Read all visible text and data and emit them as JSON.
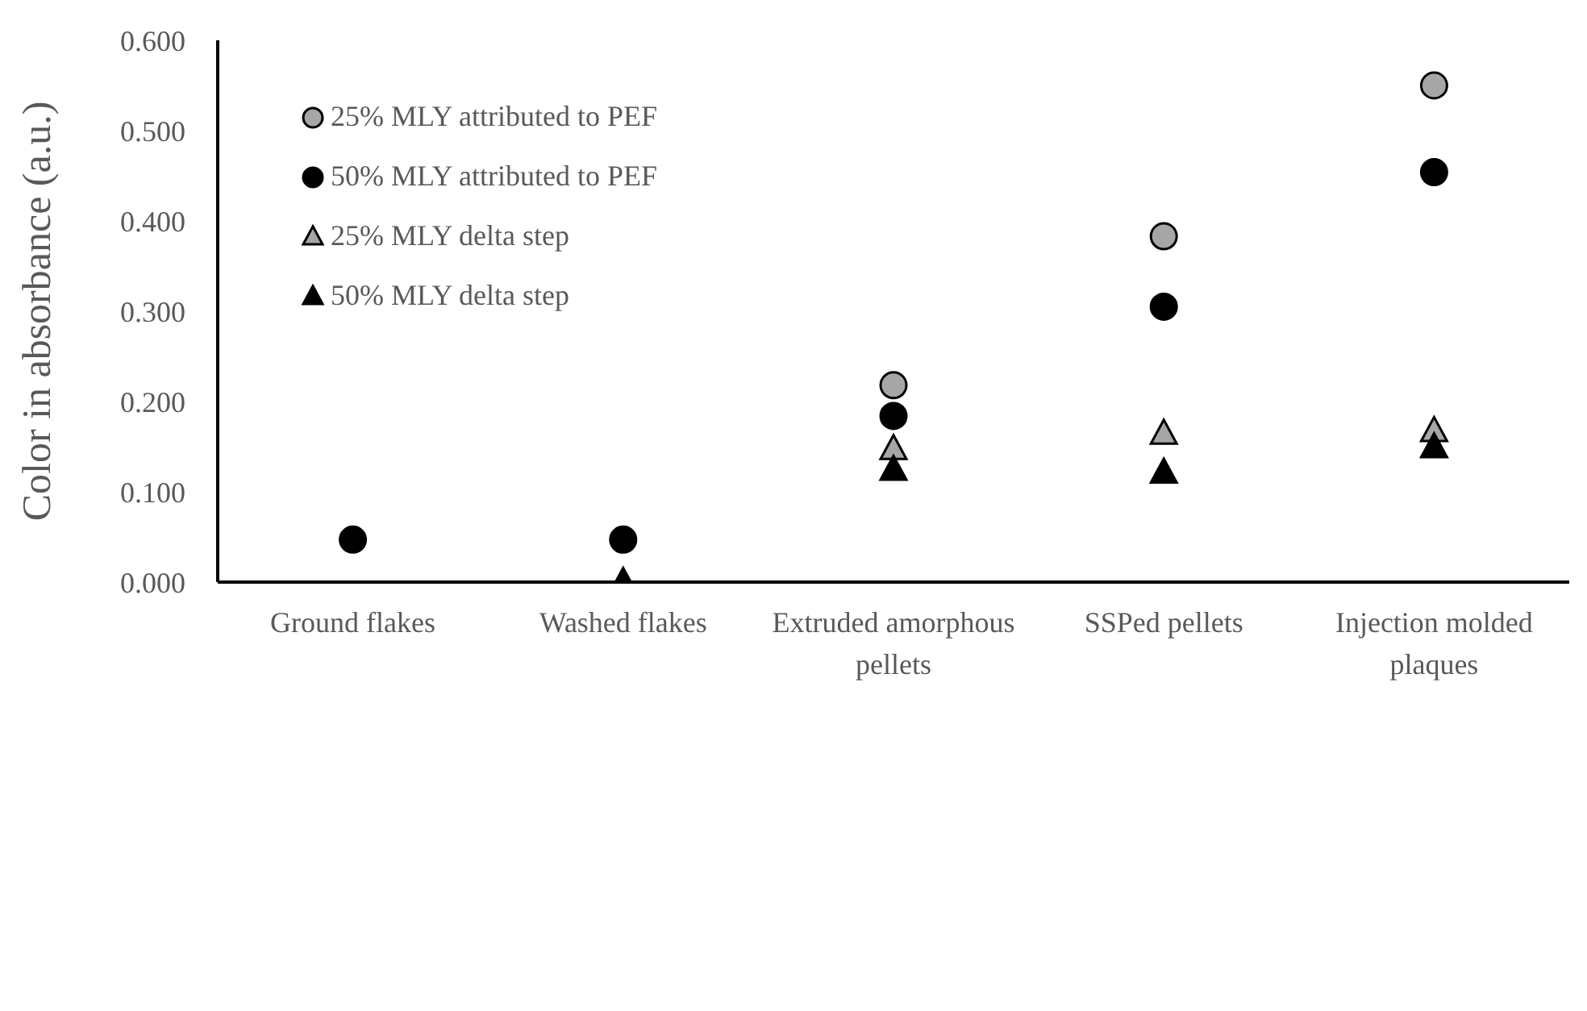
{
  "chart_data": {
    "type": "scatter",
    "ylabel": "Color in absorbance (a.u.)",
    "categories": [
      "Ground flakes",
      "Washed flakes",
      "Extruded amorphous pellets",
      "SSPed pellets",
      "Injection molded plaques"
    ],
    "series": [
      {
        "name": "25% MLY attributed to PEF",
        "color": "#a6a6a6",
        "marker": "circle",
        "values": [
          null,
          null,
          0.218,
          0.383,
          0.55
        ]
      },
      {
        "name": "50% MLY attributed to PEF",
        "color": "#000000",
        "marker": "circle",
        "values": [
          0.047,
          0.047,
          0.184,
          0.305,
          0.454
        ]
      },
      {
        "name": "25% MLY delta step",
        "color": "#a6a6a6",
        "marker": "triangle",
        "values": [
          null,
          null,
          0.147,
          0.164,
          0.167
        ]
      },
      {
        "name": "50% MLY delta step",
        "color": "#000000",
        "marker": "triangle",
        "values": [
          null,
          0.0,
          0.124,
          0.121,
          0.149
        ]
      }
    ],
    "ylim": [
      0,
      0.6
    ],
    "yticks": [
      {
        "value": 0,
        "label": "0.000"
      },
      {
        "value": 0.1,
        "label": "0.100"
      },
      {
        "value": 0.2,
        "label": "0.200"
      },
      {
        "value": 0.3,
        "label": "0.300"
      },
      {
        "value": 0.4,
        "label": "0.400"
      },
      {
        "value": 0.5,
        "label": "0.500"
      },
      {
        "value": 0.6,
        "label": "0.600"
      }
    ],
    "grid": false,
    "legend": "top left"
  }
}
